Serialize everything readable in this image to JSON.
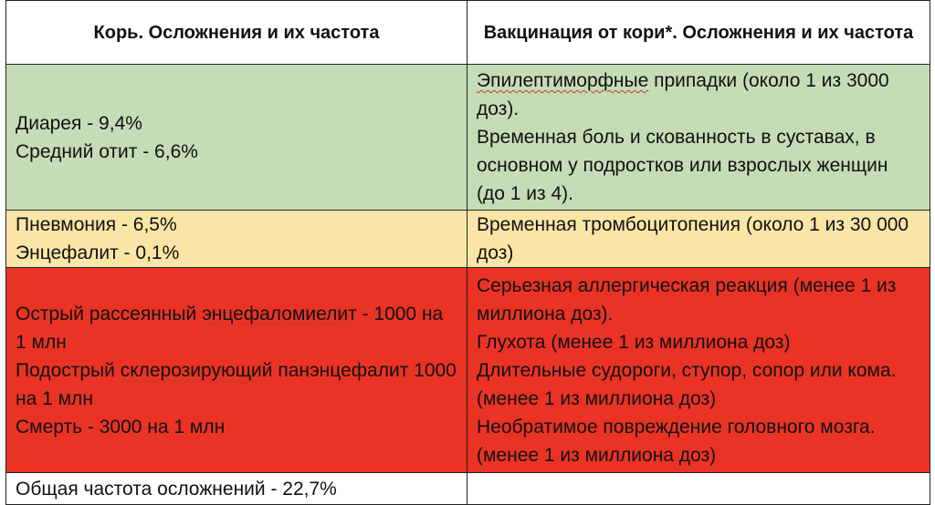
{
  "header": {
    "measles_title": "Корь. Осложнения и их частота",
    "vaccine_title": "Вакцинация от кори*. Осложнения и их частота"
  },
  "rows": [
    {
      "color": "#c6dcb6",
      "measles": [
        "Диарея - 9,4%",
        "Средний отит - 6,6%"
      ],
      "vaccine": [
        {
          "spell": "Эпилептиморфные",
          "rest": " припадки (около 1 из 3000 доз)."
        },
        "Временная боль и скованность в суставах, в основном у подростков или взрослых женщин (до 1 из 4)."
      ]
    },
    {
      "color": "#fbe5a6",
      "measles": [
        "Пневмония - 6,5%",
        "Энцефалит - 0,1%"
      ],
      "vaccine": [
        "Временная тромбоцитопения (около 1 из 30 000 доз)"
      ]
    },
    {
      "color": "#ea3325",
      "measles": [
        {
          "pre": "Острый рассеянный ",
          "spell": "энцефаломиелит",
          "rest": " - 1000 на 1 млн"
        },
        {
          "pre": "Подострый ",
          "spell": "склерозирующий",
          "rest": " панэнцефалит 1000 на 1 млн"
        },
        "Смерть - 3000 на 1 млн"
      ],
      "vaccine": [
        "Серьезная аллергическая реакция (менее 1 из миллиона доз).",
        "Глухота (менее 1 из миллиона доз)",
        "Длительные судороги, ступор, сопор или кома. (менее 1 из миллиона доз)",
        "Необратимое повреждение головного мозга. (менее 1 из миллиона доз)"
      ]
    }
  ],
  "total": {
    "measles": "Общая частота осложнений - 22,7%",
    "vaccine": ""
  }
}
